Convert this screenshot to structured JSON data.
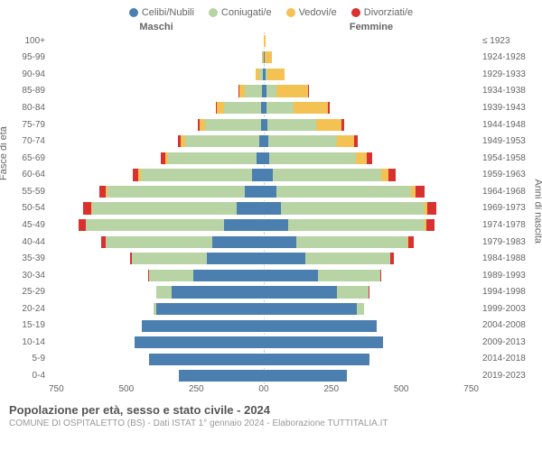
{
  "type": "population-pyramid",
  "legend": [
    {
      "label": "Celibi/Nubili",
      "color": "#4a7fb0"
    },
    {
      "label": "Coniugati/e",
      "color": "#b8d4a5"
    },
    {
      "label": "Vedovi/e",
      "color": "#f4c153"
    },
    {
      "label": "Divorziati/e",
      "color": "#d93030"
    }
  ],
  "header_male": "Maschi",
  "header_female": "Femmine",
  "y_title_left": "Fasce di età",
  "y_title_right": "Anni di nascita",
  "x_ticks_left": [
    "750",
    "500",
    "250",
    "0"
  ],
  "x_ticks_right": [
    "0",
    "250",
    "500",
    "750"
  ],
  "x_max": 750,
  "background_color": "#ffffff",
  "grid_color": "#ffffff",
  "axis_text_color": "#666666",
  "title": "Popolazione per età, sesso e stato civile - 2024",
  "subtitle": "COMUNE DI OSPITALETTO (BS) - Dati ISTAT 1° gennaio 2024 - Elaborazione TUTTITALIA.IT",
  "rows": [
    {
      "age": "100+",
      "birth": "≤ 1923",
      "m": {
        "c": 0,
        "g": 0,
        "v": 0,
        "d": 0
      },
      "f": {
        "c": 0,
        "g": 0,
        "v": 6,
        "d": 0
      }
    },
    {
      "age": "95-99",
      "birth": "1924-1928",
      "m": {
        "c": 0,
        "g": 2,
        "v": 3,
        "d": 0
      },
      "f": {
        "c": 2,
        "g": 2,
        "v": 25,
        "d": 0
      }
    },
    {
      "age": "90-94",
      "birth": "1929-1933",
      "m": {
        "c": 2,
        "g": 15,
        "v": 10,
        "d": 0
      },
      "f": {
        "c": 5,
        "g": 8,
        "v": 60,
        "d": 0
      }
    },
    {
      "age": "85-89",
      "birth": "1934-1938",
      "m": {
        "c": 5,
        "g": 60,
        "v": 20,
        "d": 2
      },
      "f": {
        "c": 8,
        "g": 35,
        "v": 110,
        "d": 3
      }
    },
    {
      "age": "80-84",
      "birth": "1939-1943",
      "m": {
        "c": 8,
        "g": 130,
        "v": 25,
        "d": 3
      },
      "f": {
        "c": 10,
        "g": 95,
        "v": 120,
        "d": 5
      }
    },
    {
      "age": "75-79",
      "birth": "1944-1948",
      "m": {
        "c": 10,
        "g": 195,
        "v": 20,
        "d": 5
      },
      "f": {
        "c": 12,
        "g": 170,
        "v": 90,
        "d": 8
      }
    },
    {
      "age": "70-74",
      "birth": "1949-1953",
      "m": {
        "c": 15,
        "g": 260,
        "v": 15,
        "d": 10
      },
      "f": {
        "c": 15,
        "g": 240,
        "v": 60,
        "d": 12
      }
    },
    {
      "age": "65-69",
      "birth": "1954-1958",
      "m": {
        "c": 25,
        "g": 310,
        "v": 10,
        "d": 15
      },
      "f": {
        "c": 20,
        "g": 300,
        "v": 40,
        "d": 18
      }
    },
    {
      "age": "60-64",
      "birth": "1959-1963",
      "m": {
        "c": 40,
        "g": 390,
        "v": 8,
        "d": 20
      },
      "f": {
        "c": 30,
        "g": 380,
        "v": 25,
        "d": 25
      }
    },
    {
      "age": "55-59",
      "birth": "1964-1968",
      "m": {
        "c": 65,
        "g": 480,
        "v": 5,
        "d": 25
      },
      "f": {
        "c": 45,
        "g": 470,
        "v": 15,
        "d": 30
      }
    },
    {
      "age": "50-54",
      "birth": "1969-1973",
      "m": {
        "c": 95,
        "g": 505,
        "v": 3,
        "d": 28
      },
      "f": {
        "c": 60,
        "g": 500,
        "v": 10,
        "d": 32
      }
    },
    {
      "age": "45-49",
      "birth": "1974-1978",
      "m": {
        "c": 140,
        "g": 480,
        "v": 2,
        "d": 25
      },
      "f": {
        "c": 85,
        "g": 475,
        "v": 6,
        "d": 30
      }
    },
    {
      "age": "40-44",
      "birth": "1979-1983",
      "m": {
        "c": 180,
        "g": 370,
        "v": 1,
        "d": 15
      },
      "f": {
        "c": 115,
        "g": 385,
        "v": 3,
        "d": 20
      }
    },
    {
      "age": "35-39",
      "birth": "1984-1988",
      "m": {
        "c": 200,
        "g": 260,
        "v": 0,
        "d": 8
      },
      "f": {
        "c": 145,
        "g": 295,
        "v": 1,
        "d": 12
      }
    },
    {
      "age": "30-34",
      "birth": "1989-1993",
      "m": {
        "c": 245,
        "g": 155,
        "v": 0,
        "d": 3
      },
      "f": {
        "c": 190,
        "g": 215,
        "v": 0,
        "d": 5
      }
    },
    {
      "age": "25-29",
      "birth": "1994-1998",
      "m": {
        "c": 320,
        "g": 55,
        "v": 0,
        "d": 1
      },
      "f": {
        "c": 255,
        "g": 110,
        "v": 0,
        "d": 2
      }
    },
    {
      "age": "20-24",
      "birth": "1999-2003",
      "m": {
        "c": 375,
        "g": 8,
        "v": 0,
        "d": 0
      },
      "f": {
        "c": 325,
        "g": 25,
        "v": 0,
        "d": 0
      }
    },
    {
      "age": "15-19",
      "birth": "2004-2008",
      "m": {
        "c": 425,
        "g": 0,
        "v": 0,
        "d": 0
      },
      "f": {
        "c": 395,
        "g": 0,
        "v": 0,
        "d": 0
      }
    },
    {
      "age": "10-14",
      "birth": "2009-2013",
      "m": {
        "c": 450,
        "g": 0,
        "v": 0,
        "d": 0
      },
      "f": {
        "c": 415,
        "g": 0,
        "v": 0,
        "d": 0
      }
    },
    {
      "age": "5-9",
      "birth": "2014-2018",
      "m": {
        "c": 400,
        "g": 0,
        "v": 0,
        "d": 0
      },
      "f": {
        "c": 370,
        "g": 0,
        "v": 0,
        "d": 0
      }
    },
    {
      "age": "0-4",
      "birth": "2019-2023",
      "m": {
        "c": 295,
        "g": 0,
        "v": 0,
        "d": 0
      },
      "f": {
        "c": 290,
        "g": 0,
        "v": 0,
        "d": 0
      }
    }
  ]
}
